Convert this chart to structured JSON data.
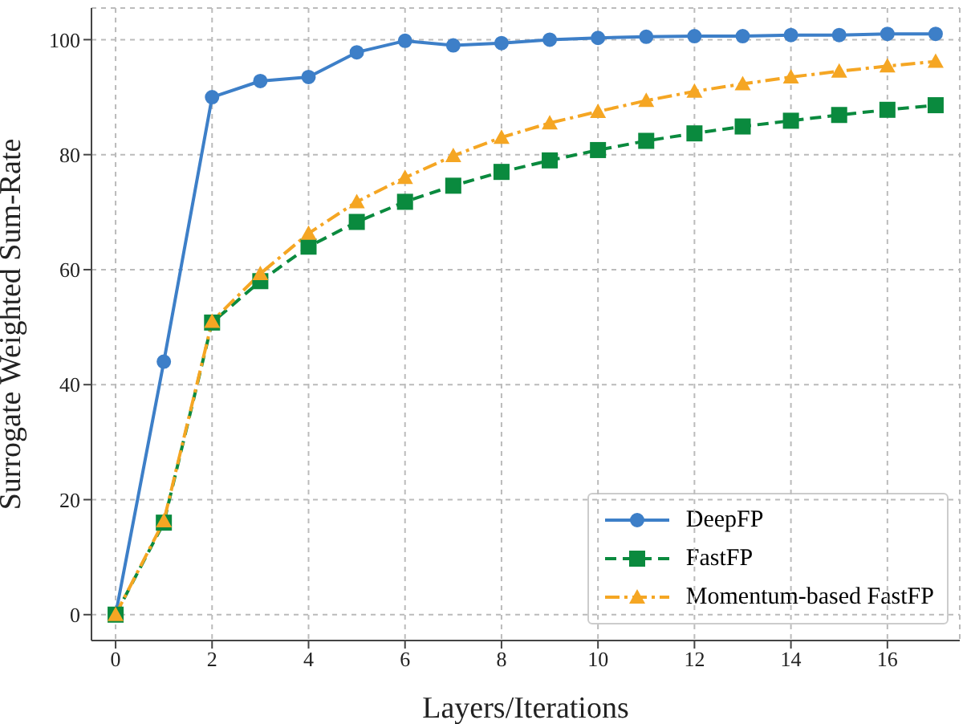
{
  "chart_data": {
    "type": "line",
    "xlabel": "Layers/Iterations",
    "ylabel": "Surrogate Weighted Sum-Rate",
    "x": [
      0,
      1,
      2,
      3,
      4,
      5,
      6,
      7,
      8,
      9,
      10,
      11,
      12,
      13,
      14,
      15,
      16,
      17
    ],
    "xlim": [
      -0.5,
      17.5
    ],
    "xticks": [
      0,
      2,
      4,
      6,
      8,
      10,
      12,
      14,
      16
    ],
    "ylim": [
      -4.5,
      105.5
    ],
    "yticks": [
      0,
      20,
      40,
      60,
      80,
      100
    ],
    "grid": true,
    "legend": "bottom right",
    "series": [
      {
        "name": "DeepFP",
        "color": "#3d7fc8",
        "marker": "circle",
        "line_style": "solid",
        "values": [
          0,
          44,
          90,
          92.8,
          93.5,
          97.8,
          99.8,
          99,
          99.4,
          100,
          100.3,
          100.5,
          100.6,
          100.6,
          100.8,
          100.8,
          101,
          101
        ]
      },
      {
        "name": "FastFP",
        "color": "#0a8a3e",
        "marker": "square",
        "line_style": "dashed",
        "values": [
          0,
          16,
          50.8,
          58,
          64,
          68.3,
          71.8,
          74.6,
          77,
          79,
          80.8,
          82.4,
          83.7,
          84.9,
          85.9,
          86.9,
          87.8,
          88.6
        ]
      },
      {
        "name": "Momentum-based FastFP",
        "color": "#f5a623",
        "marker": "triangle",
        "line_style": "dashdot",
        "values": [
          0,
          16.3,
          51,
          59.3,
          66.3,
          71.8,
          76,
          79.8,
          83,
          85.5,
          87.5,
          89.4,
          91,
          92.3,
          93.5,
          94.5,
          95.4,
          96.2
        ]
      }
    ]
  }
}
